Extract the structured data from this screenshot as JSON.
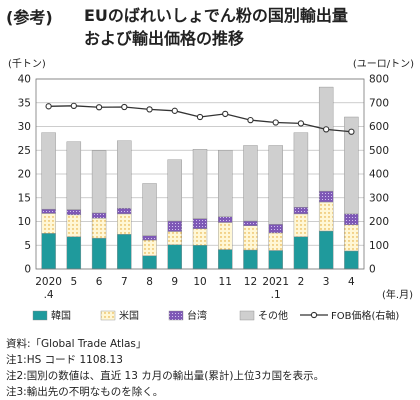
{
  "header": {
    "prefix": "(参考)",
    "title_line1": "EUのばれいしょでん粉の国別輸出量",
    "title_line2": "および輸出価格の推移"
  },
  "colors": {
    "korea": "#1f9a9c",
    "usa_fill": "#fff7d6",
    "usa_dot": "#e0a020",
    "taiwan": "#7e58b6",
    "other": "#cfcfcf",
    "fob": "#333333",
    "grid": "#bdbdbd",
    "bar_edge": "#888888"
  },
  "chart_data": {
    "type": "bar",
    "stacked": true,
    "categories": [
      [
        "2020",
        ".4"
      ],
      [
        "5"
      ],
      [
        "6"
      ],
      [
        "7"
      ],
      [
        "8"
      ],
      [
        "9"
      ],
      [
        "10"
      ],
      [
        "11"
      ],
      [
        "12"
      ],
      [
        "2021",
        ".1"
      ],
      [
        "2"
      ],
      [
        "3"
      ],
      [
        "4"
      ]
    ],
    "series": [
      {
        "name": "韓国",
        "values": [
          7.5,
          6.8,
          6.5,
          7.3,
          2.8,
          5.1,
          5.0,
          4.1,
          4.0,
          3.9,
          6.8,
          8.0,
          3.8
        ]
      },
      {
        "name": "米国",
        "values": [
          4.2,
          4.6,
          4.2,
          4.3,
          3.3,
          2.8,
          3.5,
          5.7,
          5.1,
          3.7,
          4.8,
          6.1,
          5.5
        ]
      },
      {
        "name": "台湾",
        "values": [
          0.9,
          1.1,
          1.1,
          1.2,
          0.9,
          2.2,
          2.1,
          1.2,
          1.0,
          1.8,
          1.4,
          2.3,
          2.3
        ]
      },
      {
        "name": "その他",
        "values": [
          16.1,
          14.3,
          13.1,
          14.2,
          11.0,
          12.9,
          14.6,
          14.0,
          15.9,
          16.6,
          15.7,
          21.9,
          20.4
        ]
      }
    ],
    "line": {
      "name": "FOB価格(右軸)",
      "values": [
        685,
        687,
        681,
        682,
        672,
        666,
        640,
        653,
        627,
        617,
        613,
        588,
        578
      ]
    },
    "left_axis": {
      "unit": "(千トン)",
      "ylim": [
        0,
        40
      ],
      "ticks": [
        "0",
        "5",
        "10",
        "15",
        "20",
        "25",
        "30",
        "35",
        "40"
      ]
    },
    "right_axis": {
      "unit": "(ユーロ/トン)",
      "ylim": [
        0,
        800
      ],
      "ticks": [
        "0",
        "100",
        "200",
        "300",
        "400",
        "500",
        "600",
        "700",
        "800"
      ]
    },
    "x_unit": "(年.月)",
    "grid": true,
    "legend_position": "bottom",
    "legend": [
      "韓国",
      "米国",
      "台湾",
      "その他",
      "FOB価格(右軸)"
    ]
  },
  "notes": [
    "資料:「Global Trade Atlas」",
    "注1:HS コード 1108.13",
    "注2:国別の数値は、直近 13 カ月の輸出量(累計)上位3カ国を表示。",
    "注3:輸出先の不明なものを除く。"
  ]
}
